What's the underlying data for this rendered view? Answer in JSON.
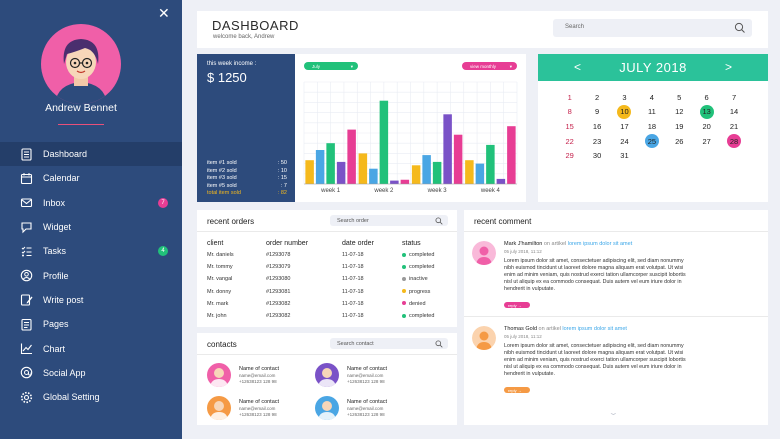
{
  "sidebar": {
    "user_name": "Andrew Bennet",
    "items": [
      {
        "label": "Dashboard",
        "icon": "dashboard-icon",
        "active": true
      },
      {
        "label": "Calendar",
        "icon": "calendar-icon"
      },
      {
        "label": "Inbox",
        "icon": "inbox-icon",
        "badge": "7",
        "badge_color": "#e73d94"
      },
      {
        "label": "Widget",
        "icon": "widget-icon"
      },
      {
        "label": "Tasks",
        "icon": "tasks-icon",
        "badge": "4",
        "badge_color": "#21c17a"
      },
      {
        "label": "Profile",
        "icon": "profile-icon"
      },
      {
        "label": "Write post",
        "icon": "write-post-icon"
      },
      {
        "label": "Pages",
        "icon": "pages-icon"
      },
      {
        "label": "Chart",
        "icon": "chart-icon"
      },
      {
        "label": "Social App",
        "icon": "social-app-icon"
      },
      {
        "label": "Global Setting",
        "icon": "settings-icon"
      }
    ]
  },
  "header": {
    "title": "DASHBOARD",
    "subtitle": "welcome back, Andrew",
    "search_placeholder": "Search"
  },
  "income": {
    "label": "this week income :",
    "value": "$ 1250",
    "items": [
      {
        "label": "item #1 sold",
        "value": ": 50"
      },
      {
        "label": "item #2 sold",
        "value": ": 10"
      },
      {
        "label": "item #3 sold",
        "value": ": 15"
      },
      {
        "label": "item #5 sold",
        "value": ": 7"
      },
      {
        "label": "total item sold",
        "value": ": 82"
      }
    ]
  },
  "chart_filters": {
    "left": "July",
    "right": "view monthly"
  },
  "chart_data": {
    "type": "bar",
    "categories": [
      "week 1",
      "week 2",
      "week 3",
      "week 4"
    ],
    "series": [
      {
        "color": "#f5b91c",
        "values": [
          28,
          36,
          22,
          28
        ]
      },
      {
        "color": "#4aa6e4",
        "values": [
          40,
          18,
          34,
          24
        ]
      },
      {
        "color": "#21c17a",
        "values": [
          48,
          98,
          26,
          46
        ]
      },
      {
        "color": "#7a52c7",
        "values": [
          26,
          4,
          82,
          6
        ]
      },
      {
        "color": "#e73d94",
        "values": [
          64,
          5,
          58,
          68
        ]
      }
    ],
    "ylim": [
      0,
      120
    ],
    "grid": true
  },
  "calendar": {
    "month": "JULY 2018",
    "prev": "<",
    "next": ">",
    "days": [
      {
        "d": "1",
        "sun": true
      },
      {
        "d": "2"
      },
      {
        "d": "3"
      },
      {
        "d": "4"
      },
      {
        "d": "5"
      },
      {
        "d": "6"
      },
      {
        "d": "7"
      },
      {
        "d": "8",
        "sun": true
      },
      {
        "d": "9"
      },
      {
        "d": "10",
        "hl": "#f5b91c"
      },
      {
        "d": "11"
      },
      {
        "d": "12"
      },
      {
        "d": "13",
        "hl": "#21c17a"
      },
      {
        "d": "14"
      },
      {
        "d": "15",
        "sun": true
      },
      {
        "d": "16"
      },
      {
        "d": "17"
      },
      {
        "d": "18"
      },
      {
        "d": "19"
      },
      {
        "d": "20"
      },
      {
        "d": "21"
      },
      {
        "d": "22",
        "sun": true
      },
      {
        "d": "23"
      },
      {
        "d": "24"
      },
      {
        "d": "25",
        "hl": "#4aa6e4"
      },
      {
        "d": "26"
      },
      {
        "d": "27"
      },
      {
        "d": "28",
        "hl": "#e73d94"
      },
      {
        "d": "29",
        "sun": true
      },
      {
        "d": "30"
      },
      {
        "d": "31"
      }
    ]
  },
  "orders": {
    "title": "recent orders",
    "search_placeholder": "Search order",
    "columns": [
      "client",
      "order number",
      "date order",
      "status"
    ],
    "rows": [
      {
        "client": "Mr. daniels",
        "number": "#1293078",
        "date": "11-07-18",
        "status": "completed",
        "color": "#21c17a"
      },
      {
        "client": "Mr. tommy",
        "number": "#1293079",
        "date": "11-07-18",
        "status": "completed",
        "color": "#21c17a"
      },
      {
        "client": "Mr. vangal",
        "number": "#1293080",
        "date": "11-07-18",
        "status": "inactive",
        "color": "#999999"
      },
      {
        "client": "Mr. donny",
        "number": "#1293081",
        "date": "11-07-18",
        "status": "progress",
        "color": "#f5b91c"
      },
      {
        "client": "Mr. mark",
        "number": "#1293082",
        "date": "11-07-18",
        "status": "denied",
        "color": "#e73d94"
      },
      {
        "client": "Mr. john",
        "number": "#1293082",
        "date": "11-07-18",
        "status": "completed",
        "color": "#21c17a"
      }
    ]
  },
  "contacts": {
    "title": "contacts",
    "search_placeholder": "Search contact",
    "items": [
      {
        "name": "Name of contact",
        "email": "name@email.com",
        "phone": "+12638123 128 98",
        "color": "#f05fa8"
      },
      {
        "name": "Name of contact",
        "email": "name@email.com",
        "phone": "+12638123 128 98",
        "color": "#7a52c7"
      },
      {
        "name": "Name of contact",
        "email": "name@email.com",
        "phone": "+12638123 128 98",
        "color": "#f59a45"
      },
      {
        "name": "Name of contact",
        "email": "name@email.com",
        "phone": "+12638123 128 98",
        "color": "#4aa6e4"
      }
    ]
  },
  "comments": {
    "title": "recent comment",
    "items": [
      {
        "author": "Mark J'hamilton",
        "on": "on artikel",
        "link": "lorem ipsum dolor sit amet",
        "date": "05 july 2018, 11:12",
        "text": "Lorem ipsum dolor sit amet, consectetuer adipiscing elit, sed diam nonummy nibh euismod tincidunt ut laoreet dolore magna aliquam erat volutpat. Ut wisi enim ad minim veniam, quis nostrud exerci tation ullamcorper suscipit lobortis nisl ut aliquip ex ea commodo consequat. Duis autem vel eum iriure dolor in hendrerit in vulputate.",
        "reply": "reply",
        "reply_color": "#e73d94",
        "avatar_color": "#f05fa8"
      },
      {
        "author": "Thomas Gold",
        "on": "on artikel",
        "link": "lorem ipsum dolor sit amet",
        "date": "05 july 2018, 11:12",
        "text": "Lorem ipsum dolor sit amet, consectetuer adipiscing elit, sed diam nonummy nibh euismod tincidunt ut laoreet dolore magna aliquam erat volutpat. Ut wisi enim ad minim veniam, quis nostrud exerci tation ullamcorper suscipit lobortis nisl ut aliquip ex ea commodo consequat. Duis autem vel eum iriure dolor in hendrerit in vulputate.",
        "reply": "reply",
        "reply_color": "#f59a45",
        "avatar_color": "#f59a45"
      }
    ]
  }
}
